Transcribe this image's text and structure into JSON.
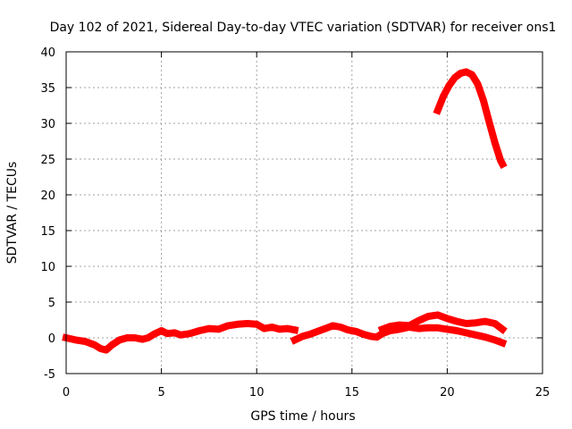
{
  "chart_data": {
    "type": "scatter",
    "title": "Day 102 of 2021, Sidereal Day-to-day VTEC variation (SDTVAR) for receiver ons1",
    "xlabel": "GPS time / hours",
    "ylabel": "SDTVAR / TECUs",
    "xlim": [
      0,
      25
    ],
    "ylim": [
      -5,
      40
    ],
    "xticks": [
      0,
      5,
      10,
      15,
      20,
      25
    ],
    "yticks": [
      -5,
      0,
      5,
      10,
      15,
      20,
      25,
      30,
      35,
      40
    ],
    "grid": true,
    "legend": "none",
    "series": [
      {
        "name": "SDTVAR",
        "color": "#ff0000",
        "segments": [
          {
            "x": [
              0.0,
              0.5,
              1.0,
              1.5,
              1.8,
              2.1,
              2.4,
              2.8,
              3.2,
              3.6,
              4.0,
              4.3,
              4.6,
              5.0,
              5.3,
              5.7,
              6.0,
              6.5,
              7.0,
              7.5,
              8.0,
              8.5,
              9.0,
              9.5,
              10.0,
              10.4,
              10.8,
              11.2,
              11.6,
              12.0
            ],
            "y": [
              0.0,
              -0.3,
              -0.5,
              -1.0,
              -1.5,
              -1.7,
              -1.0,
              -0.3,
              0.0,
              0.0,
              -0.2,
              0.0,
              0.5,
              1.0,
              0.6,
              0.7,
              0.4,
              0.6,
              1.0,
              1.3,
              1.2,
              1.7,
              1.9,
              2.0,
              1.9,
              1.3,
              1.5,
              1.2,
              1.3,
              1.1
            ]
          },
          {
            "x": [
              12.0,
              12.4,
              12.8,
              13.2,
              13.6,
              14.0,
              14.4,
              14.8,
              15.2,
              15.6,
              16.0,
              16.3,
              16.6,
              17.0,
              17.5,
              18.0,
              18.5,
              19.0,
              19.5,
              20.0,
              20.5,
              21.0,
              21.5,
              22.0,
              22.5,
              22.9
            ],
            "y": [
              -0.3,
              0.2,
              0.5,
              0.9,
              1.3,
              1.7,
              1.5,
              1.1,
              0.9,
              0.5,
              0.2,
              0.1,
              0.6,
              1.0,
              1.2,
              1.5,
              1.3,
              1.4,
              1.4,
              1.2,
              1.0,
              0.7,
              0.4,
              0.1,
              -0.3,
              -0.7
            ]
          },
          {
            "x": [
              16.6,
              17.0,
              17.5,
              18.0,
              18.5,
              19.0,
              19.5,
              20.0,
              20.5,
              21.0,
              21.5,
              22.0,
              22.5,
              22.9
            ],
            "y": [
              1.2,
              1.6,
              1.8,
              1.7,
              2.4,
              3.0,
              3.2,
              2.7,
              2.3,
              2.0,
              2.1,
              2.3,
              2.0,
              1.2
            ]
          },
          {
            "x": [
              19.5,
              19.8,
              20.1,
              20.4,
              20.7,
              21.0,
              21.3,
              21.6,
              21.9,
              22.2,
              22.5,
              22.8,
              22.9
            ],
            "y": [
              31.8,
              33.8,
              35.3,
              36.4,
              37.0,
              37.2,
              36.8,
              35.5,
              33.2,
              30.2,
              27.3,
              24.8,
              24.3
            ]
          }
        ]
      }
    ]
  }
}
